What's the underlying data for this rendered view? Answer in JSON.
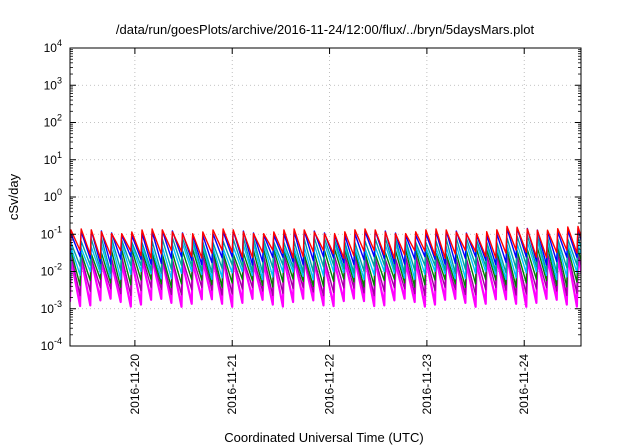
{
  "chart_data": {
    "type": "line",
    "title": "/data/run/goesPlots/archive/2016-11-24/12:00/flux/../bryn/5daysMars.plot",
    "xlabel": "Coordinated Universal Time (UTC)",
    "ylabel": "cSv/day",
    "yscale": "log",
    "ylim": [
      0.0001,
      10000
    ],
    "y_ticks": [
      {
        "base": "10",
        "exp": "-4"
      },
      {
        "base": "10",
        "exp": "-3"
      },
      {
        "base": "10",
        "exp": "-2"
      },
      {
        "base": "10",
        "exp": "-1"
      },
      {
        "base": "10",
        "exp": "0"
      },
      {
        "base": "10",
        "exp": "1"
      },
      {
        "base": "10",
        "exp": "2"
      },
      {
        "base": "10",
        "exp": "3"
      },
      {
        "base": "10",
        "exp": "4"
      }
    ],
    "xlim": [
      "2016-11-19T08:00",
      "2016-11-24T14:00"
    ],
    "x_tick_labels": [
      "2016-11-20",
      "2016-11-21",
      "2016-11-22",
      "2016-11-23",
      "2016-11-24"
    ],
    "grid": true,
    "pattern": {
      "description": "Sawtooth pulses repeating roughly every 2.5 hours across all series",
      "period_hours": 2.5
    },
    "series": [
      {
        "color": "#ff0000",
        "peak": 0.12,
        "trough": 0.03
      },
      {
        "color": "#0000ff",
        "peak": 0.11,
        "trough": 0.02
      },
      {
        "color": "#00a0a0",
        "peak": 0.07,
        "trough": 0.012
      },
      {
        "color": "#00c0ff",
        "peak": 0.05,
        "trough": 0.008
      },
      {
        "color": "#008000",
        "peak": 0.035,
        "trough": 0.005
      },
      {
        "color": "#a000a0",
        "peak": 0.025,
        "trough": 0.003
      },
      {
        "color": "#ff00ff",
        "peak": 0.02,
        "trough": 0.0015
      }
    ]
  }
}
